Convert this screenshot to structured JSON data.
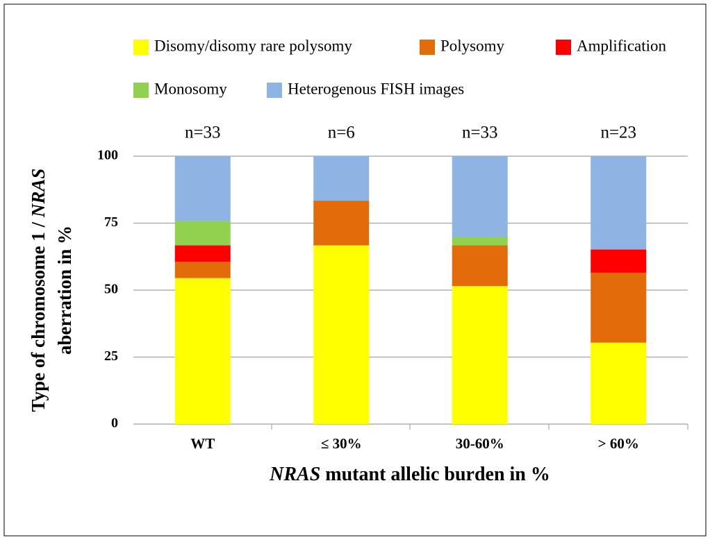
{
  "chart_data": {
    "type": "stacked_bar",
    "categories": [
      "WT",
      "≤ 30%",
      "30-60%",
      "> 60%"
    ],
    "annotations": [
      "n=33",
      "n=6",
      "n=33",
      "n=23"
    ],
    "series": [
      {
        "name": "Disomy/disomy rare polysomy",
        "color": "#ffff00",
        "values": [
          54.5,
          66.7,
          51.5,
          30.4
        ]
      },
      {
        "name": "Polysomy",
        "color": "#e36c0a",
        "values": [
          6.1,
          16.7,
          15.2,
          26.1
        ]
      },
      {
        "name": "Amplification",
        "color": "#ff0000",
        "values": [
          6.1,
          0,
          0,
          8.7
        ]
      },
      {
        "name": "Monosomy",
        "color": "#92d050",
        "values": [
          9.1,
          0,
          3.0,
          0
        ]
      },
      {
        "name": "Heterogenous FISH images",
        "color": "#8eb4e3",
        "values": [
          24.2,
          16.7,
          30.3,
          34.8
        ]
      }
    ],
    "ylim": [
      0,
      100
    ],
    "yticks": [
      0,
      25,
      50,
      75,
      100
    ],
    "grid": true,
    "xlabel": [
      "NRAS",
      " mutant allelic burden in %"
    ],
    "ylabel": [
      [
        "Type of chromosome 1 / ",
        "NRAS"
      ],
      [
        "aberration in %"
      ]
    ]
  }
}
